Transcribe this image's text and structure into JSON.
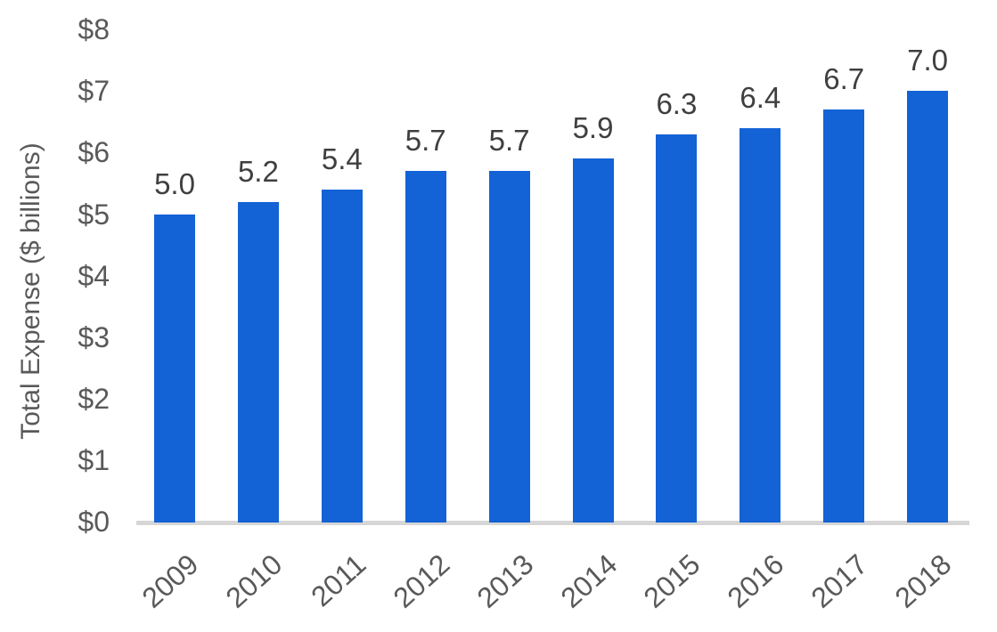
{
  "chart_data": {
    "type": "bar",
    "title": "",
    "xlabel": "",
    "ylabel": "Total Expense ($ billions)",
    "categories": [
      "2009",
      "2010",
      "2011",
      "2012",
      "2013",
      "2014",
      "2015",
      "2016",
      "2017",
      "2018"
    ],
    "values": [
      5.0,
      5.2,
      5.4,
      5.7,
      5.7,
      5.9,
      6.3,
      6.4,
      6.7,
      7.0
    ],
    "data_labels": [
      "5.0",
      "5.2",
      "5.4",
      "5.7",
      "5.7",
      "5.9",
      "6.3",
      "6.4",
      "6.7",
      "7.0"
    ],
    "ylim": [
      0,
      8
    ],
    "ytick_step": 1,
    "ytick_labels": [
      "$0",
      "$1",
      "$2",
      "$3",
      "$4",
      "$5",
      "$6",
      "$7",
      "$8"
    ],
    "grid": false,
    "legend": null,
    "colors": {
      "bar": "#1363d6",
      "axis_text": "#595959",
      "data_label_text": "#3f3f3f",
      "baseline": "#d6d6d6"
    }
  }
}
